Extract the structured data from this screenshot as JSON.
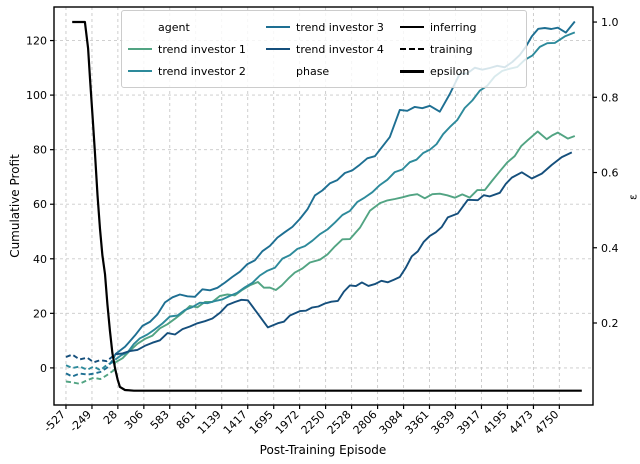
{
  "chart_data": {
    "type": "line",
    "title": "",
    "xlabel": "Post-Training Episode",
    "ylabel_left": "Cumulative Profit",
    "ylabel_right": "ε",
    "grid": true,
    "legend_position": "upper left",
    "xlim": [
      -655,
      5110
    ],
    "ylim_left": [
      -13.6,
      132.3
    ],
    "ylim_right": [
      -0.018,
      1.04
    ],
    "x_ticks": [
      -527,
      -249,
      28,
      306,
      583,
      861,
      1139,
      1417,
      1695,
      1972,
      2250,
      2528,
      2806,
      3084,
      3361,
      3639,
      3917,
      4195,
      4473,
      4750
    ],
    "y_ticks_left": [
      0,
      20,
      40,
      60,
      80,
      100,
      120
    ],
    "y_ticks_right": [
      0.2,
      0.4,
      0.6,
      0.8,
      1.0
    ],
    "series": [
      {
        "name": "trend investor 1",
        "color": "#52a483",
        "axis": "left",
        "segments": [
          {
            "phase": "training",
            "style": "dashed",
            "points": [
              [
                -527,
                -5
              ],
              [
                -460,
                -5
              ],
              [
                -380,
                -6
              ],
              [
                -300,
                -5
              ],
              [
                -230,
                -4
              ],
              [
                -160,
                -4
              ],
              [
                -90,
                -3
              ],
              [
                -20,
                -1
              ],
              [
                0,
                2
              ]
            ]
          },
          {
            "phase": "inferring",
            "style": "solid",
            "points": [
              [
                0,
                2
              ],
              [
                157,
                6
              ],
              [
                318,
                10
              ],
              [
                478,
                14
              ],
              [
                639,
                18
              ],
              [
                799,
                22
              ],
              [
                959,
                24
              ],
              [
                1120,
                26
              ],
              [
                1280,
                27
              ],
              [
                1440,
                30
              ],
              [
                1526,
                31
              ],
              [
                1654,
                29
              ],
              [
                1782,
                30
              ],
              [
                1921,
                34
              ],
              [
                2082,
                38
              ],
              [
                2189,
                40
              ],
              [
                2349,
                45
              ],
              [
                2510,
                48
              ],
              [
                2617,
                52
              ],
              [
                2724,
                57
              ],
              [
                2830,
                60
              ],
              [
                2991,
                62
              ],
              [
                3151,
                63
              ],
              [
                3311,
                63
              ],
              [
                3471,
                64
              ],
              [
                3632,
                63
              ],
              [
                3792,
                63
              ],
              [
                3953,
                66
              ],
              [
                4113,
                72
              ],
              [
                4273,
                78
              ],
              [
                4412,
                83
              ],
              [
                4519,
                86
              ],
              [
                4615,
                83
              ],
              [
                4733,
                86
              ],
              [
                4840,
                85
              ],
              [
                4915,
                85
              ]
            ]
          }
        ]
      },
      {
        "name": "trend investor 2",
        "color": "#2d8a9b",
        "axis": "left",
        "segments": [
          {
            "phase": "training",
            "style": "dashed",
            "points": [
              [
                -527,
                1
              ],
              [
                -460,
                0
              ],
              [
                -380,
                1
              ],
              [
                -300,
                -1
              ],
              [
                -230,
                0
              ],
              [
                -160,
                -1
              ],
              [
                -90,
                1
              ],
              [
                -20,
                2
              ],
              [
                0,
                3
              ]
            ]
          },
          {
            "phase": "inferring",
            "style": "solid",
            "points": [
              [
                0,
                3
              ],
              [
                264,
                10
              ],
              [
                585,
                18
              ],
              [
                906,
                23
              ],
              [
                1226,
                26
              ],
              [
                1547,
                33
              ],
              [
                1868,
                42
              ],
              [
                2189,
                49
              ],
              [
                2510,
                58
              ],
              [
                2830,
                67
              ],
              [
                3151,
                75
              ],
              [
                3365,
                80
              ],
              [
                3578,
                88
              ],
              [
                3738,
                95
              ],
              [
                3899,
                102
              ],
              [
                4059,
                106
              ],
              [
                4220,
                110
              ],
              [
                4380,
                112
              ],
              [
                4541,
                118
              ],
              [
                4701,
                120
              ],
              [
                4808,
                122
              ],
              [
                4915,
                123
              ]
            ]
          }
        ]
      },
      {
        "name": "trend investor 3",
        "color": "#1e6f92",
        "axis": "left",
        "segments": [
          {
            "phase": "training",
            "style": "dashed",
            "points": [
              [
                -527,
                -2
              ],
              [
                -460,
                -3
              ],
              [
                -380,
                -2
              ],
              [
                -300,
                -3
              ],
              [
                -230,
                -2
              ],
              [
                -160,
                -1
              ],
              [
                -90,
                0
              ],
              [
                -20,
                3
              ],
              [
                0,
                5
              ]
            ]
          },
          {
            "phase": "inferring",
            "style": "solid",
            "points": [
              [
                0,
                5
              ],
              [
                104,
                8
              ],
              [
                211,
                12
              ],
              [
                371,
                17
              ],
              [
                532,
                24
              ],
              [
                692,
                27
              ],
              [
                852,
                27
              ],
              [
                1013,
                29
              ],
              [
                1173,
                31
              ],
              [
                1333,
                36
              ],
              [
                1494,
                40
              ],
              [
                1654,
                44
              ],
              [
                1814,
                50
              ],
              [
                1975,
                55
              ],
              [
                2135,
                63
              ],
              [
                2295,
                68
              ],
              [
                2456,
                71
              ],
              [
                2616,
                74
              ],
              [
                2777,
                78
              ],
              [
                2937,
                85
              ],
              [
                3044,
                94
              ],
              [
                3204,
                96
              ],
              [
                3365,
                96
              ],
              [
                3471,
                93
              ],
              [
                3578,
                100
              ],
              [
                3685,
                107
              ],
              [
                3846,
                110
              ],
              [
                4006,
                110
              ],
              [
                4166,
                111
              ],
              [
                4327,
                115
              ],
              [
                4455,
                122
              ],
              [
                4594,
                125
              ],
              [
                4733,
                125
              ],
              [
                4819,
                123
              ],
              [
                4915,
                127
              ]
            ]
          }
        ]
      },
      {
        "name": "trend investor 4",
        "color": "#154f7c",
        "axis": "left",
        "segments": [
          {
            "phase": "training",
            "style": "dashed",
            "points": [
              [
                -527,
                4
              ],
              [
                -460,
                5
              ],
              [
                -380,
                3
              ],
              [
                -300,
                4
              ],
              [
                -230,
                2
              ],
              [
                -160,
                3
              ],
              [
                -90,
                3
              ],
              [
                -20,
                4
              ],
              [
                0,
                5
              ]
            ]
          },
          {
            "phase": "inferring",
            "style": "solid",
            "points": [
              [
                0,
                5
              ],
              [
                157,
                6
              ],
              [
                318,
                8
              ],
              [
                478,
                11
              ],
              [
                639,
                13
              ],
              [
                799,
                15
              ],
              [
                959,
                17
              ],
              [
                1120,
                21
              ],
              [
                1280,
                24
              ],
              [
                1419,
                25
              ],
              [
                1526,
                20
              ],
              [
                1633,
                15
              ],
              [
                1740,
                16
              ],
              [
                1868,
                19
              ],
              [
                1975,
                21
              ],
              [
                2103,
                22
              ],
              [
                2242,
                24
              ],
              [
                2381,
                25
              ],
              [
                2510,
                30
              ],
              [
                2638,
                31
              ],
              [
                2777,
                30
              ],
              [
                2916,
                32
              ],
              [
                3044,
                34
              ],
              [
                3172,
                40
              ],
              [
                3300,
                46
              ],
              [
                3429,
                50
              ],
              [
                3557,
                55
              ],
              [
                3664,
                57
              ],
              [
                3771,
                61
              ],
              [
                3878,
                62
              ],
              [
                4006,
                63
              ],
              [
                4113,
                65
              ],
              [
                4241,
                69
              ],
              [
                4348,
                71
              ],
              [
                4455,
                70
              ],
              [
                4562,
                72
              ],
              [
                4669,
                75
              ],
              [
                4776,
                77
              ],
              [
                4883,
                79
              ]
            ]
          }
        ]
      },
      {
        "name": "epsilon",
        "color": "#000000",
        "axis": "right",
        "segments": [
          {
            "phase": "epsilon",
            "style": "solid",
            "points": [
              [
                -460,
                1.0
              ],
              [
                -324,
                1.0
              ],
              [
                -290,
                0.93
              ],
              [
                -270,
                0.85
              ],
              [
                -240,
                0.74
              ],
              [
                -217,
                0.65
              ],
              [
                -190,
                0.54
              ],
              [
                -163,
                0.45
              ],
              [
                -137,
                0.38
              ],
              [
                -110,
                0.33
              ],
              [
                -84,
                0.25
              ],
              [
                -57,
                0.18
              ],
              [
                -30,
                0.12
              ],
              [
                -3,
                0.08
              ],
              [
                25,
                0.05
              ],
              [
                50,
                0.03
              ],
              [
                104,
                0.022
              ],
              [
                200,
                0.02
              ],
              [
                4990,
                0.02
              ]
            ]
          }
        ]
      }
    ]
  },
  "legend": {
    "columns": [
      {
        "rows": [
          {
            "label": "agent",
            "handle": "none",
            "color": "",
            "header": true
          },
          {
            "label": "trend investor 1",
            "handle": "solid",
            "color": "#52a483",
            "header": false
          },
          {
            "label": "trend investor 2",
            "handle": "solid",
            "color": "#2d8a9b",
            "header": false
          }
        ]
      },
      {
        "rows": [
          {
            "label": "trend investor 3",
            "handle": "solid",
            "color": "#1e6f92",
            "header": false
          },
          {
            "label": "trend investor 4",
            "handle": "solid",
            "color": "#154f7c",
            "header": false
          },
          {
            "label": "phase",
            "handle": "none",
            "color": "",
            "header": true
          }
        ]
      },
      {
        "rows": [
          {
            "label": "inferring",
            "handle": "solid",
            "color": "#000000",
            "header": false
          },
          {
            "label": "training",
            "handle": "dashed",
            "color": "#000000",
            "header": false
          },
          {
            "label": "epsilon",
            "handle": "thick",
            "color": "#000000",
            "header": false
          }
        ]
      }
    ]
  },
  "style": {
    "grid_color": "#c9c9c9",
    "spine_color": "#000000",
    "background": "#ffffff"
  }
}
